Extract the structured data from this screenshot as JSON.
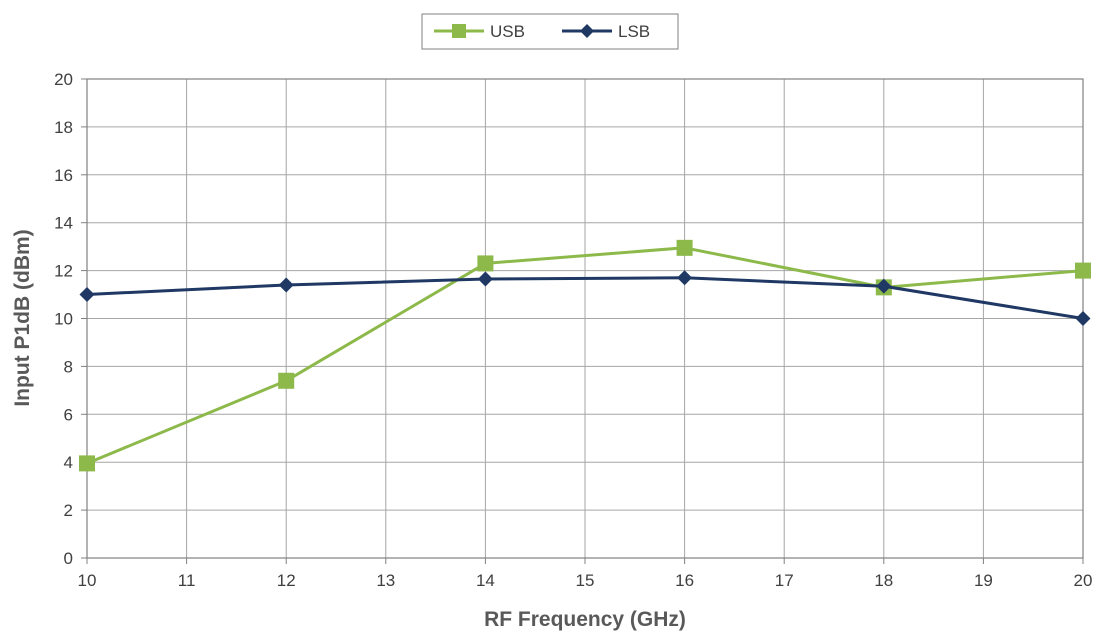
{
  "chart_data": {
    "type": "line",
    "title": "",
    "xlabel": "RF Frequency (GHz)",
    "ylabel": "Input P1dB (dBm)",
    "xlim": [
      10,
      20
    ],
    "ylim": [
      0,
      20
    ],
    "x_ticks": [
      10,
      11,
      12,
      13,
      14,
      15,
      16,
      17,
      18,
      19,
      20
    ],
    "y_ticks": [
      0,
      2,
      4,
      6,
      8,
      10,
      12,
      14,
      16,
      18,
      20
    ],
    "grid": true,
    "legend_position": "top-center",
    "series": [
      {
        "name": "USB",
        "color": "#8DB94B",
        "marker": "square",
        "x": [
          10,
          12,
          14,
          16,
          18,
          20
        ],
        "y": [
          3.95,
          7.4,
          12.3,
          12.95,
          11.3,
          12.0
        ]
      },
      {
        "name": "LSB",
        "color": "#1F3864",
        "marker": "diamond",
        "x": [
          10,
          12,
          14,
          16,
          18,
          20
        ],
        "y": [
          11.0,
          11.4,
          11.65,
          11.7,
          11.35,
          10.0
        ]
      }
    ]
  }
}
